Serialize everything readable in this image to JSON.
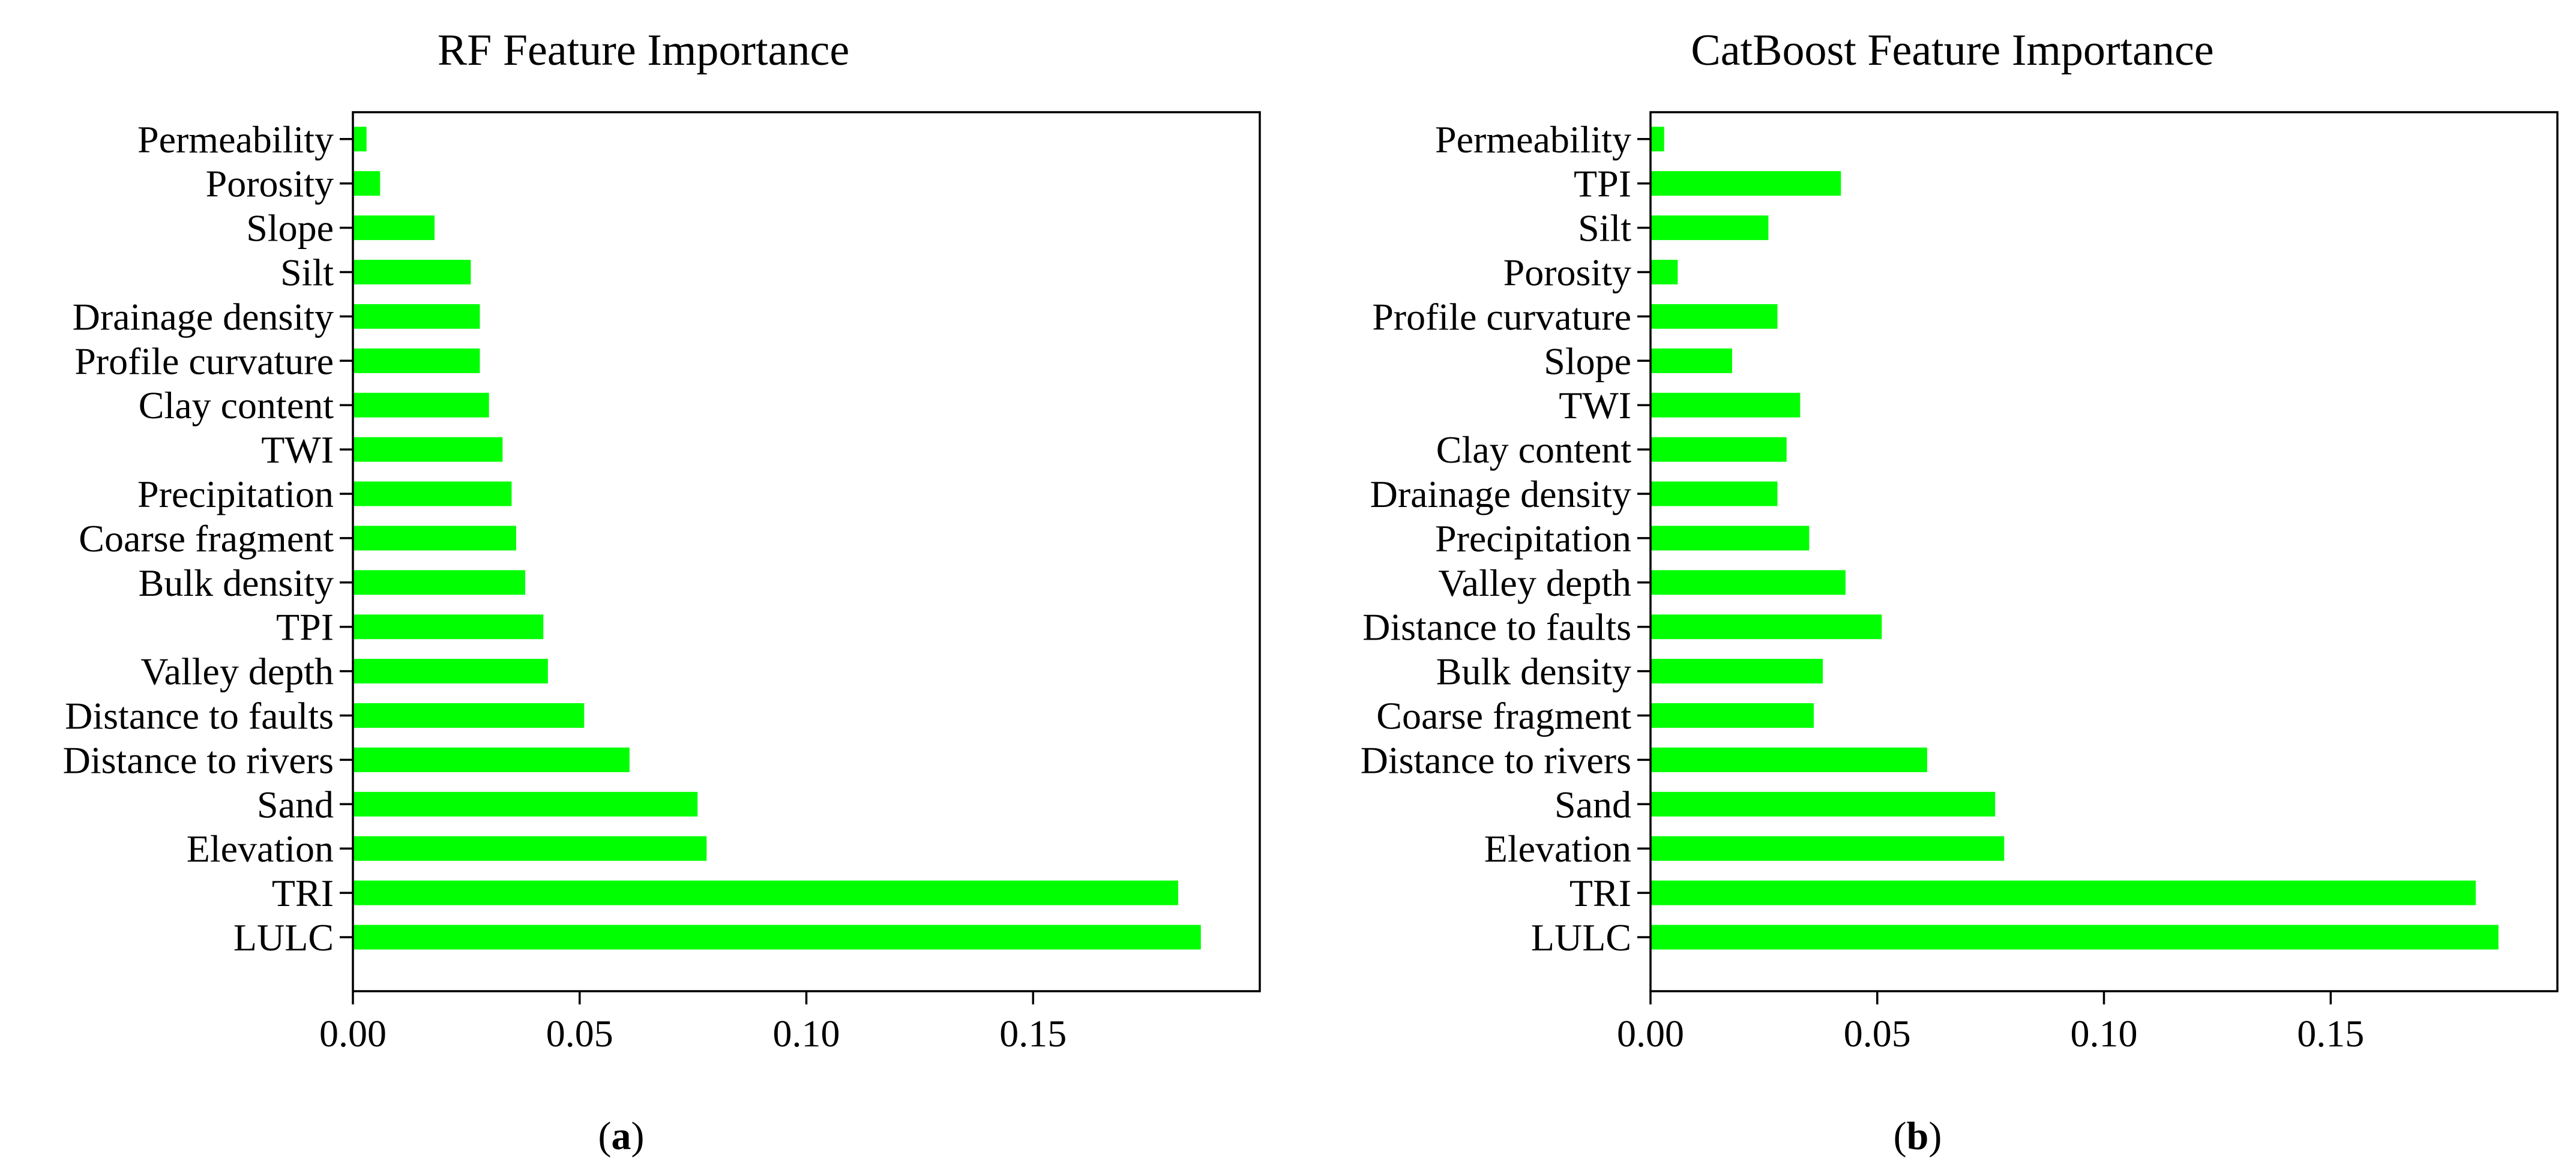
{
  "figure": {
    "panels": [
      {
        "id": "a",
        "letter": "a",
        "open_paren": "(",
        "close_paren": ")"
      },
      {
        "id": "b",
        "letter": "b",
        "open_paren": "(",
        "close_paren": ")"
      }
    ]
  },
  "chart_data": [
    {
      "type": "bar",
      "orientation": "horizontal",
      "title": "RF Feature Importance",
      "xlabel": "",
      "ylabel": "",
      "xlim": [
        0,
        0.2
      ],
      "xticks": [
        0.0,
        0.05,
        0.1,
        0.15
      ],
      "xtick_labels": [
        "0.00",
        "0.05",
        "0.10",
        "0.15"
      ],
      "grid": false,
      "bar_color": "#00FF00",
      "categories": [
        "LULC",
        "TRI",
        "Elevation",
        "Sand",
        "Distance to rivers",
        "Distance to faults",
        "Valley depth",
        "TPI",
        "Bulk density",
        "Coarse fragment",
        "Precipitation",
        "TWI",
        "Clay content",
        "Profile curvature",
        "Drainage density",
        "Silt",
        "Slope",
        "Porosity",
        "Permeability"
      ],
      "values": [
        0.187,
        0.182,
        0.078,
        0.076,
        0.061,
        0.051,
        0.043,
        0.042,
        0.038,
        0.036,
        0.035,
        0.033,
        0.03,
        0.028,
        0.028,
        0.026,
        0.018,
        0.006,
        0.003
      ]
    },
    {
      "type": "bar",
      "orientation": "horizontal",
      "title": "CatBoost Feature Importance",
      "xlabel": "",
      "ylabel": "",
      "xlim": [
        0,
        0.2
      ],
      "xticks": [
        0.0,
        0.05,
        0.1,
        0.15
      ],
      "xtick_labels": [
        "0.00",
        "0.05",
        "0.10",
        "0.15"
      ],
      "grid": false,
      "bar_color": "#00FF00",
      "categories": [
        "LULC",
        "TRI",
        "Elevation",
        "Sand",
        "Distance to rivers",
        "Coarse fragment",
        "Bulk density",
        "Distance to faults",
        "Valley depth",
        "Precipitation",
        "Drainage density",
        "Clay content",
        "TWI",
        "Slope",
        "Profile curvature",
        "Porosity",
        "Silt",
        "TPI",
        "Permeability"
      ],
      "values": [
        0.187,
        0.182,
        0.078,
        0.076,
        0.061,
        0.036,
        0.038,
        0.051,
        0.043,
        0.035,
        0.028,
        0.03,
        0.033,
        0.018,
        0.028,
        0.006,
        0.026,
        0.042,
        0.003
      ]
    }
  ]
}
